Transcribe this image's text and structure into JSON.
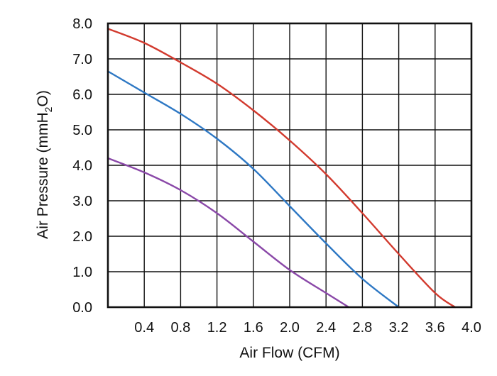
{
  "chart_data": {
    "type": "line",
    "xlabel": "Air Flow (CFM)",
    "ylabel": "Air Pressure (mmH2O)",
    "ylabel_parts": {
      "main": "Air Pressure (mmH",
      "sub": "2",
      "tail": "O)"
    },
    "xlim": [
      0,
      4.0
    ],
    "ylim": [
      0,
      8.0
    ],
    "x_ticks": [
      "0.4",
      "0.8",
      "1.2",
      "1.6",
      "2.0",
      "2.4",
      "2.8",
      "3.2",
      "3.6",
      "4.0"
    ],
    "y_ticks": [
      "0.0",
      "1.0",
      "2.0",
      "3.0",
      "4.0",
      "5.0",
      "6.0",
      "7.0",
      "8.0"
    ],
    "grid": true,
    "series": [
      {
        "color": "#d23a2e",
        "x": [
          0.0,
          0.4,
          0.8,
          1.2,
          1.6,
          2.0,
          2.4,
          2.8,
          3.2,
          3.6,
          3.82
        ],
        "y": [
          7.85,
          7.45,
          6.9,
          6.3,
          5.55,
          4.7,
          3.75,
          2.65,
          1.5,
          0.4,
          0.0
        ]
      },
      {
        "color": "#2e78c4",
        "x": [
          0.0,
          0.4,
          0.8,
          1.2,
          1.6,
          2.0,
          2.4,
          2.8,
          3.2
        ],
        "y": [
          6.65,
          6.05,
          5.45,
          4.75,
          3.9,
          2.85,
          1.8,
          0.8,
          0.0
        ]
      },
      {
        "color": "#8a48a8",
        "x": [
          0.0,
          0.4,
          0.8,
          1.2,
          1.6,
          2.0,
          2.4,
          2.65
        ],
        "y": [
          4.2,
          3.8,
          3.3,
          2.65,
          1.85,
          1.05,
          0.4,
          0.0
        ]
      }
    ]
  }
}
